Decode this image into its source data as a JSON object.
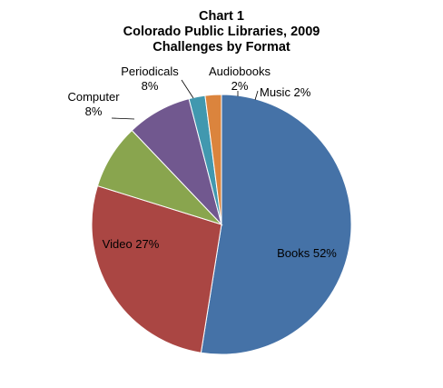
{
  "chart_data": {
    "type": "pie",
    "title_lines": [
      "Chart 1",
      "Colorado Public Libraries, 2009",
      "Challenges by Format"
    ],
    "start_angle_deg": 0,
    "direction": "clockwise",
    "slices": [
      {
        "name": "Books",
        "value": 52,
        "label_lines": [
          "Books 52%"
        ],
        "color": "#4572a7"
      },
      {
        "name": "Video",
        "value": 27,
        "label_lines": [
          "Video 27%"
        ],
        "color": "#aa4643"
      },
      {
        "name": "Computer",
        "value": 8,
        "label_lines": [
          "Computer",
          "8%"
        ],
        "color": "#89a54e"
      },
      {
        "name": "Periodicals",
        "value": 8,
        "label_lines": [
          "Periodicals",
          "8%"
        ],
        "color": "#71588f"
      },
      {
        "name": "Audiobooks",
        "value": 2,
        "label_lines": [
          "Audiobooks",
          "2%"
        ],
        "color": "#4198af"
      },
      {
        "name": "Music",
        "value": 2,
        "label_lines": [
          "Music 2%"
        ],
        "color": "#db843d"
      }
    ]
  }
}
